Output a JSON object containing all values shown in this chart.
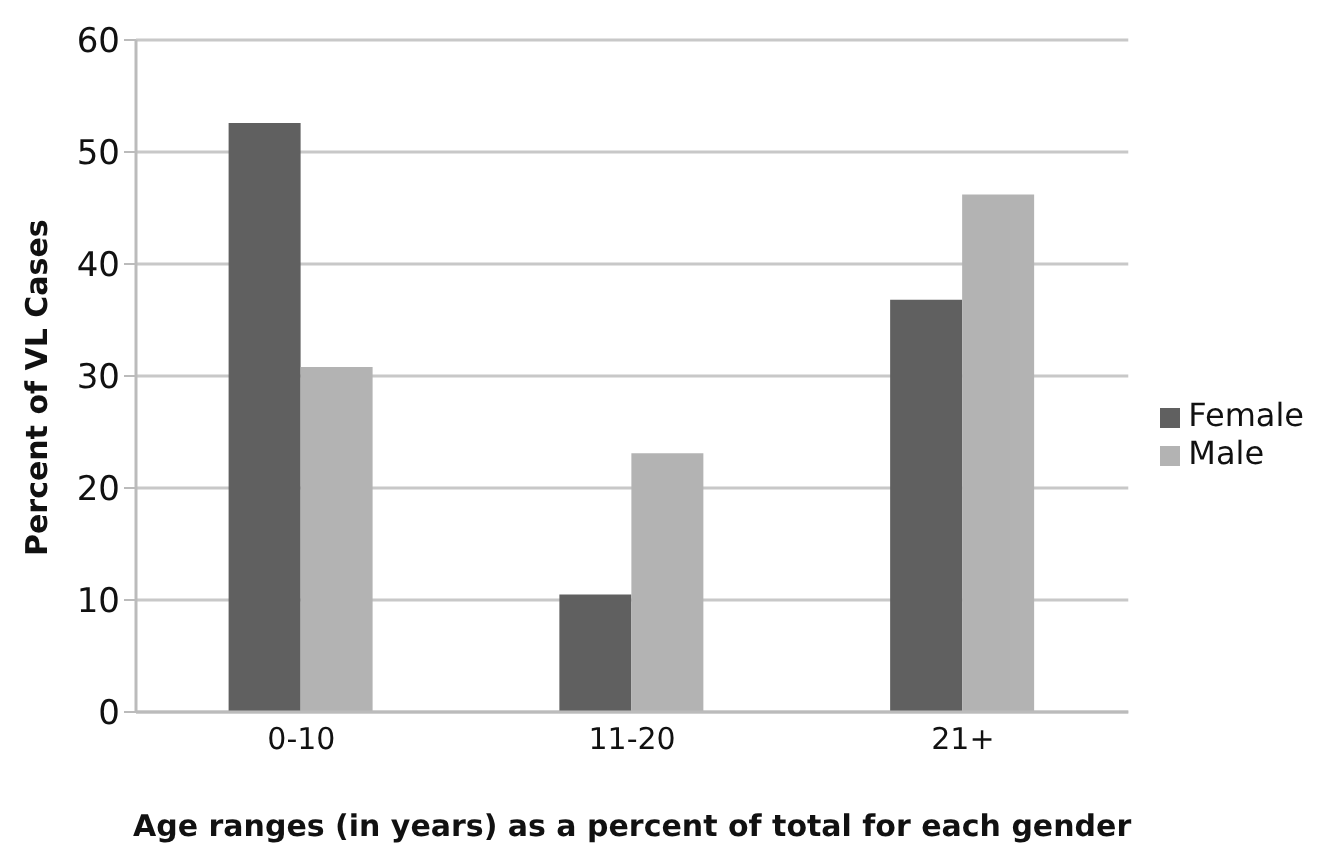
{
  "chart_data": {
    "type": "bar",
    "xlabel": "Age ranges (in years) as a percent of total for each gender",
    "ylabel": "Percent of VL Cases",
    "categories": [
      "0-10",
      "11-20",
      "21+"
    ],
    "series": [
      {
        "name": "Female",
        "color": "#606060",
        "values": [
          52.6,
          10.5,
          36.8
        ]
      },
      {
        "name": "Male",
        "color": "#b3b3b3",
        "values": [
          30.8,
          23.1,
          46.2
        ]
      }
    ],
    "ylim": [
      0,
      60
    ],
    "yticks": [
      0,
      10,
      20,
      30,
      40,
      50,
      60
    ],
    "grid": "y",
    "legend": "right"
  }
}
